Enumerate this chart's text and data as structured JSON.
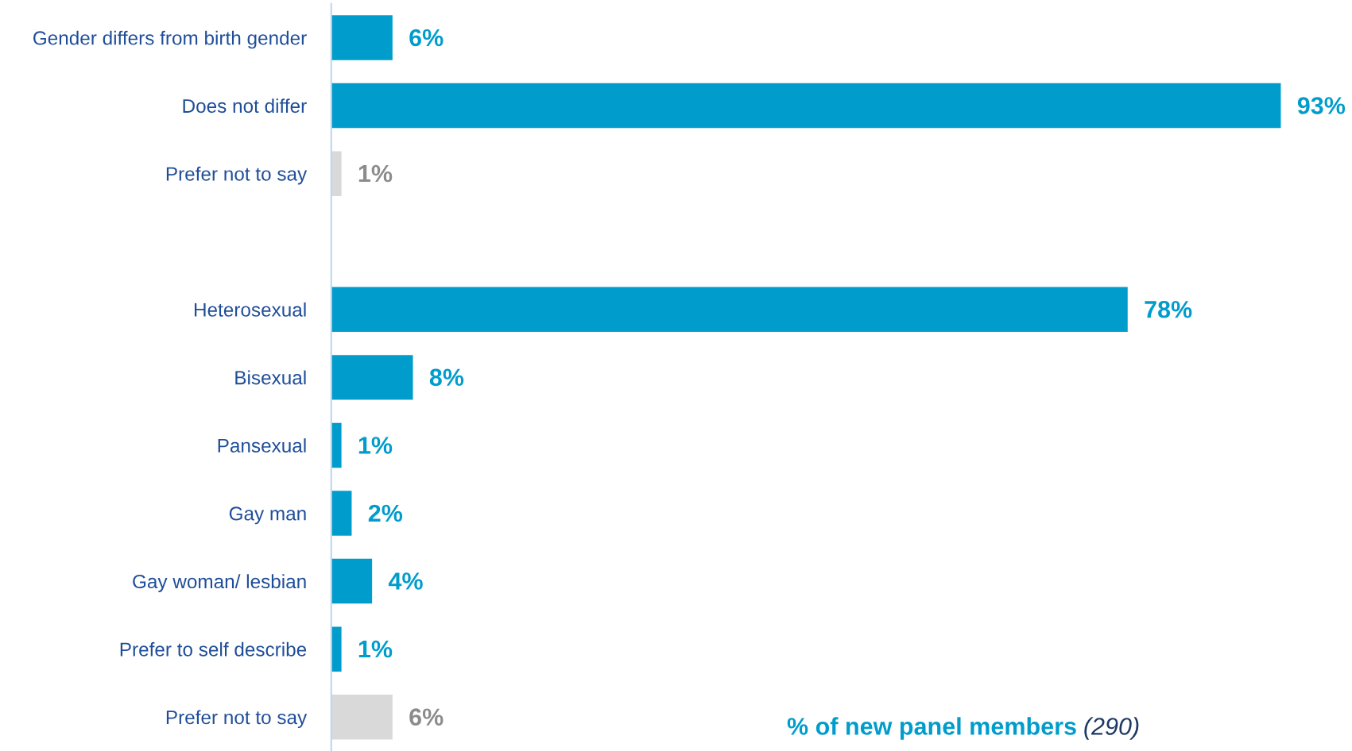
{
  "chart_data": {
    "type": "bar",
    "orientation": "horizontal",
    "categories": [
      "Gender differs from birth gender",
      "Does not differ",
      "Prefer not to say",
      null,
      "Heterosexual",
      "Bisexual",
      "Pansexual",
      "Gay man",
      "Gay woman/ lesbian",
      "Prefer to self describe",
      "Prefer not to say"
    ],
    "values": [
      6,
      93,
      1,
      null,
      78,
      8,
      1,
      2,
      4,
      1,
      6
    ],
    "colors": [
      "#009dcc",
      "#009dcc",
      "#d9d9d9",
      null,
      "#009dcc",
      "#009dcc",
      "#009dcc",
      "#009dcc",
      "#009dcc",
      "#009dcc",
      "#d9d9d9"
    ],
    "value_labels": [
      "6%",
      "93%",
      "1%",
      null,
      "78%",
      "8%",
      "1%",
      "2%",
      "4%",
      "1%",
      "6%"
    ],
    "annotations": [
      "% of new panel members",
      "(290)"
    ],
    "grid": false,
    "legend": false
  }
}
